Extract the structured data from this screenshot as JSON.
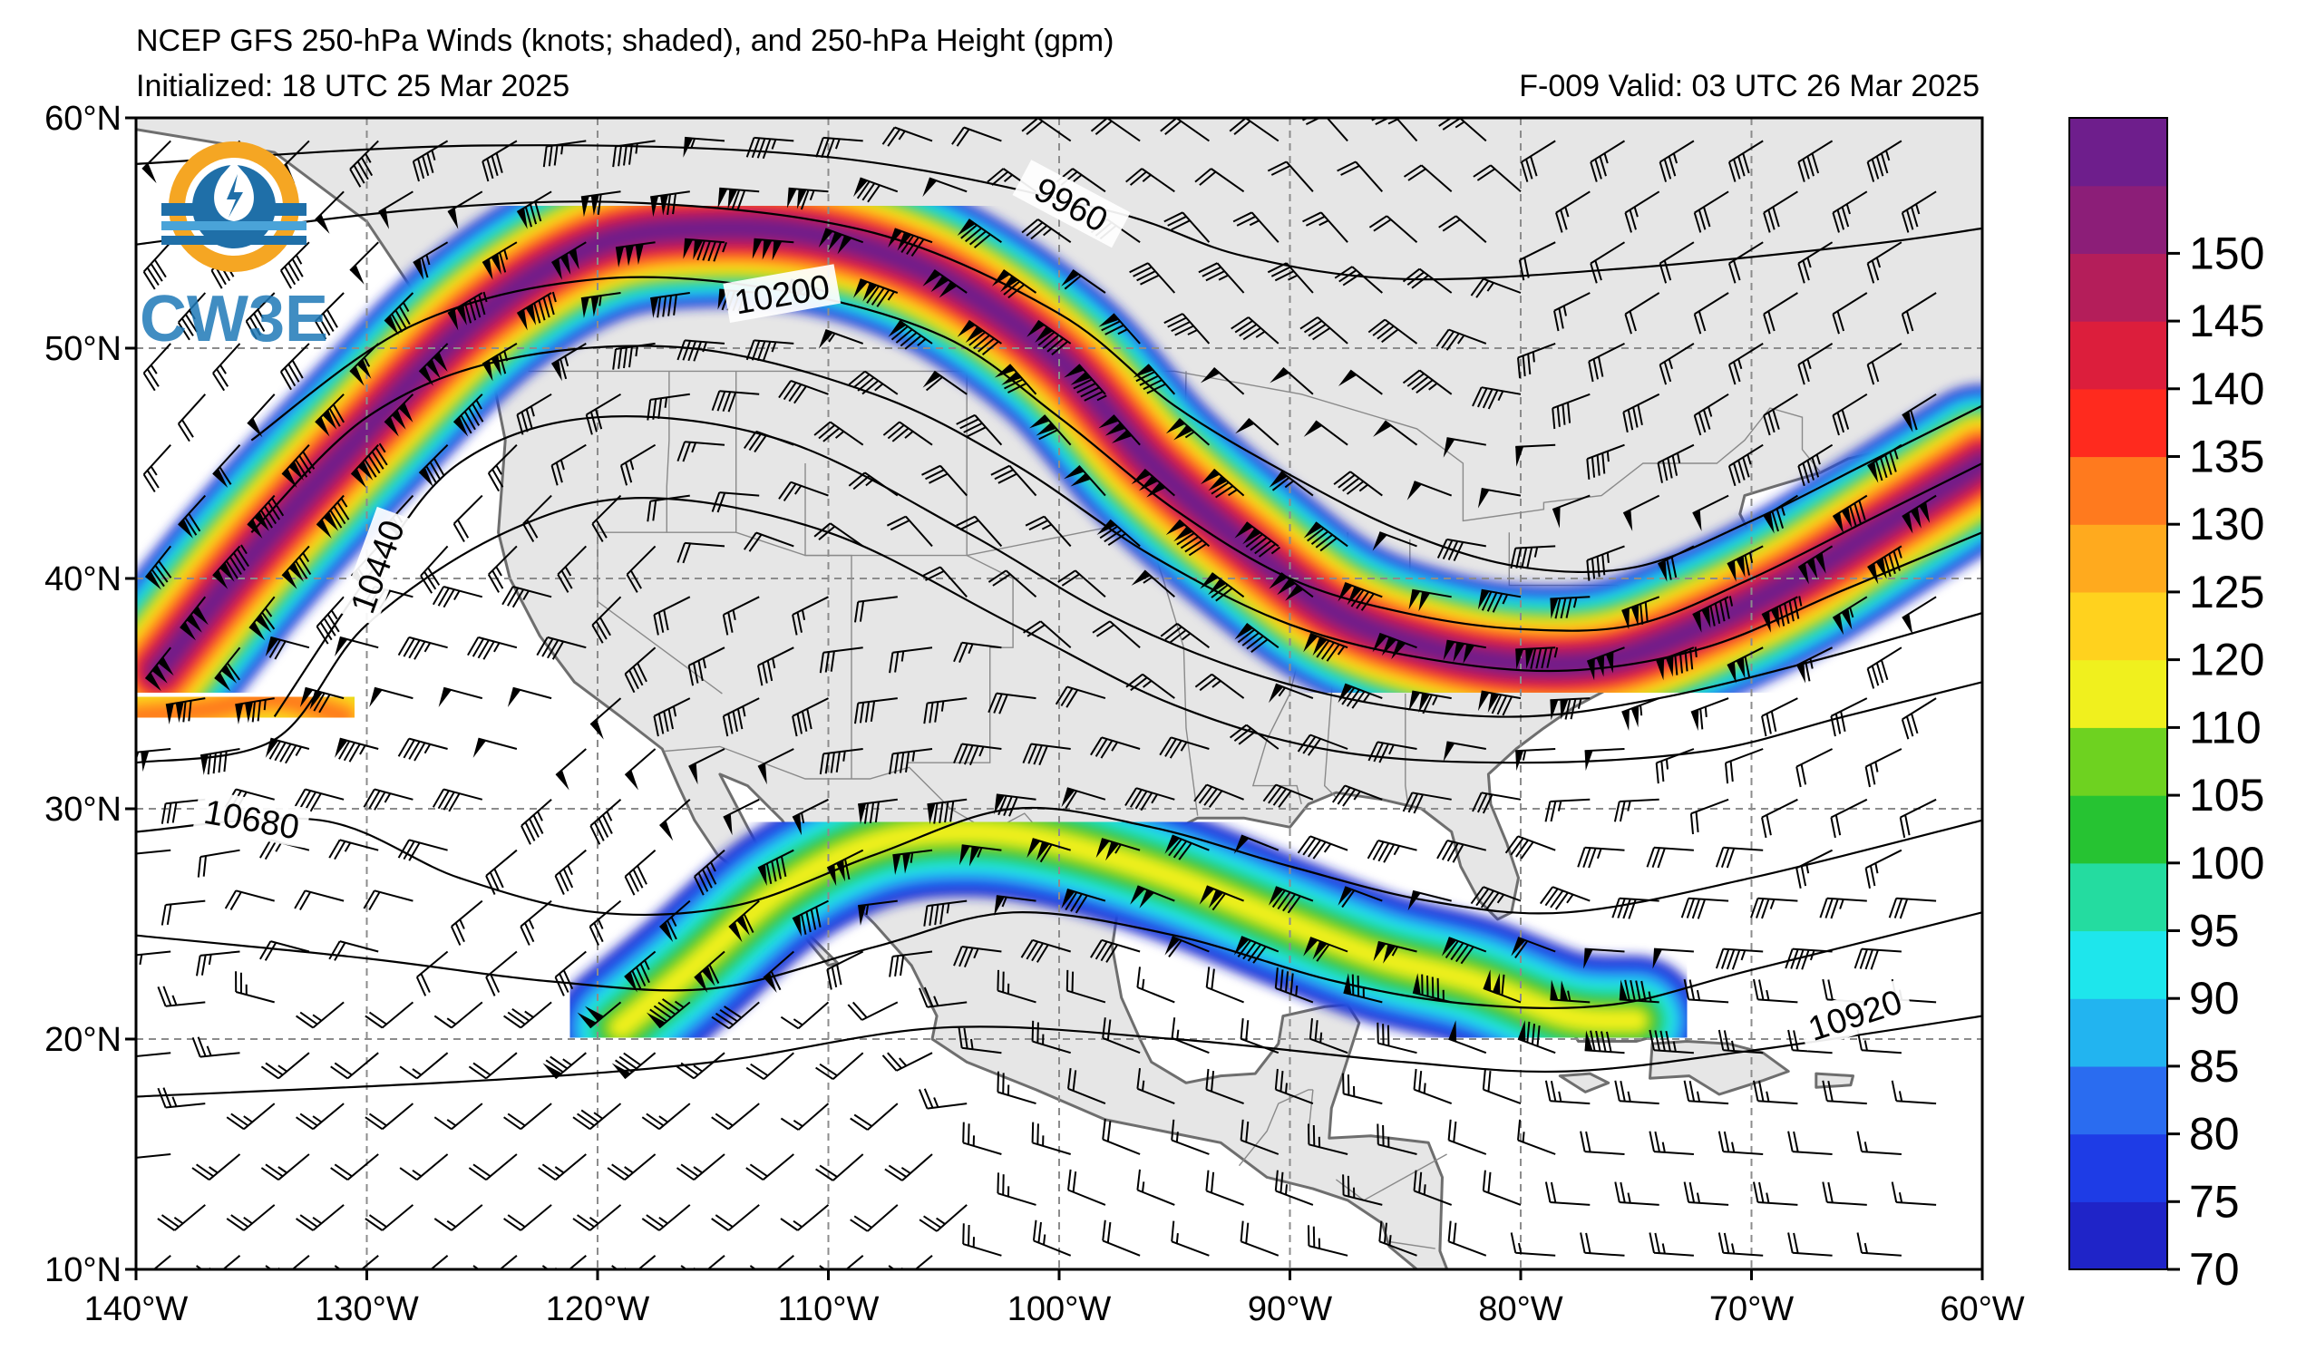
{
  "title": {
    "line1": "NCEP GFS 250-hPa Winds (knots; shaded), and 250-hPa Height (gpm)",
    "initialized": "Initialized: 18 UTC 25 Mar 2025",
    "valid": "F-009  Valid: 03 UTC 26 Mar 2025"
  },
  "logo": {
    "text": "CW3E",
    "icon": "cw3e-logo-icon"
  },
  "map": {
    "lon_range": [
      -140,
      -60
    ],
    "lat_range": [
      10,
      60
    ],
    "lon_ticks": [
      "140°W",
      "130°W",
      "120°W",
      "110°W",
      "100°W",
      "90°W",
      "80°W",
      "70°W",
      "60°W"
    ],
    "lat_ticks": [
      "60°N",
      "50°N",
      "40°N",
      "30°N",
      "20°N",
      "10°N"
    ],
    "grid": "dashed",
    "land_color": "#e6e6e6",
    "ocean_color": "#ffffff",
    "contour_labels": [
      "9960",
      "10200",
      "10440",
      "10680",
      "10920"
    ]
  },
  "colorbar": {
    "ticks": [
      "70",
      "75",
      "80",
      "85",
      "90",
      "95",
      "100",
      "105",
      "110",
      "120",
      "125",
      "130",
      "135",
      "140",
      "145",
      "150"
    ],
    "colors": [
      "#1f24c8",
      "#1e3ce6",
      "#2a6cf0",
      "#22b4f0",
      "#1ee6ec",
      "#24dca0",
      "#26c332",
      "#6ed220",
      "#f0f01e",
      "#ffd21e",
      "#ffaa1e",
      "#ff7a1e",
      "#ff2a1e",
      "#dc1e3c",
      "#b41e5a",
      "#8c1e78",
      "#6e1e8c"
    ]
  },
  "jets": [
    {
      "name": "northern-jet",
      "peak_knots": 150,
      "axis": [
        [
          -139,
          36
        ],
        [
          -135,
          41
        ],
        [
          -130,
          46.5
        ],
        [
          -125,
          51.5
        ],
        [
          -120,
          54.5
        ],
        [
          -115,
          55.2
        ],
        [
          -110,
          54.8
        ],
        [
          -105,
          53
        ],
        [
          -100,
          49.5
        ],
        [
          -96,
          45
        ],
        [
          -92,
          41.5
        ],
        [
          -88,
          38.5
        ],
        [
          -84,
          37
        ],
        [
          -80,
          36.3
        ],
        [
          -76,
          36.5
        ],
        [
          -72,
          38
        ],
        [
          -68,
          40
        ],
        [
          -64,
          42.5
        ],
        [
          -60,
          45
        ]
      ],
      "width_deg": 3.4
    },
    {
      "name": "southern-jet",
      "peak_knots": 110,
      "axis": [
        [
          -119,
          20.5
        ],
        [
          -116,
          23
        ],
        [
          -112,
          26.5
        ],
        [
          -108,
          28.5
        ],
        [
          -104,
          29
        ],
        [
          -100,
          28.5
        ],
        [
          -95,
          27
        ],
        [
          -90,
          25
        ],
        [
          -86,
          23.5
        ],
        [
          -82,
          22.5
        ],
        [
          -78,
          21
        ],
        [
          -75,
          20.8
        ]
      ],
      "width_deg": 2.8
    },
    {
      "name": "pacific-jet",
      "peak_knots": 125,
      "axis": [
        [
          -140,
          34
        ],
        [
          -137,
          34.3
        ],
        [
          -134,
          34.8
        ],
        [
          -131,
          34
        ]
      ],
      "width_deg": 3.0
    }
  ],
  "contours": [
    [
      [
        -140,
        58
      ],
      [
        -125,
        58.8
      ],
      [
        -110,
        58.3
      ],
      [
        -98,
        56
      ],
      [
        -92,
        54
      ],
      [
        -85,
        53
      ],
      [
        -75,
        53.5
      ],
      [
        -65,
        54.5
      ],
      [
        -60,
        55.2
      ]
    ],
    [
      [
        -140,
        54.5
      ],
      [
        -128,
        56
      ],
      [
        -118,
        56.3
      ],
      [
        -108,
        55
      ],
      [
        -100,
        51.5
      ],
      [
        -95,
        47.5
      ],
      [
        -90,
        44.5
      ],
      [
        -85,
        42
      ],
      [
        -80,
        40.5
      ],
      [
        -75,
        40.5
      ],
      [
        -70,
        42.5
      ],
      [
        -65,
        45
      ],
      [
        -60,
        47.5
      ]
    ],
    [
      [
        -135,
        46
      ],
      [
        -128,
        51
      ],
      [
        -120,
        53
      ],
      [
        -112,
        52.5
      ],
      [
        -105,
        50.5
      ],
      [
        -100,
        47
      ],
      [
        -95,
        43
      ],
      [
        -90,
        40
      ],
      [
        -85,
        38.5
      ],
      [
        -80,
        37.8
      ],
      [
        -75,
        38
      ],
      [
        -70,
        40
      ],
      [
        -65,
        42.5
      ],
      [
        -60,
        45
      ]
    ],
    [
      [
        -135,
        42
      ],
      [
        -130,
        47
      ],
      [
        -124,
        49.5
      ],
      [
        -116,
        50
      ],
      [
        -108,
        48
      ],
      [
        -102,
        45
      ],
      [
        -96,
        41
      ],
      [
        -90,
        38
      ],
      [
        -84,
        36.5
      ],
      [
        -78,
        36
      ],
      [
        -72,
        37
      ],
      [
        -66,
        39.5
      ],
      [
        -60,
        42
      ]
    ],
    [
      [
        -134,
        34
      ],
      [
        -130,
        40
      ],
      [
        -126,
        45
      ],
      [
        -120,
        47
      ],
      [
        -112,
        46
      ],
      [
        -104,
        42
      ],
      [
        -98,
        38.5
      ],
      [
        -92,
        36
      ],
      [
        -86,
        34.5
      ],
      [
        -80,
        34
      ],
      [
        -74,
        34.8
      ],
      [
        -67,
        36.5
      ],
      [
        -60,
        38.5
      ]
    ],
    [
      [
        -140,
        32
      ],
      [
        -134,
        33
      ],
      [
        -130,
        38
      ],
      [
        -124,
        42
      ],
      [
        -118,
        43.5
      ],
      [
        -110,
        42
      ],
      [
        -102,
        38
      ],
      [
        -95,
        34.5
      ],
      [
        -88,
        32.5
      ],
      [
        -80,
        32
      ],
      [
        -72,
        32.5
      ],
      [
        -66,
        34
      ],
      [
        -60,
        35.5
      ]
    ],
    [
      [
        -140,
        29
      ],
      [
        -132,
        29.5
      ],
      [
        -126,
        27
      ],
      [
        -120,
        25.5
      ],
      [
        -114,
        25.8
      ],
      [
        -108,
        28
      ],
      [
        -102,
        30
      ],
      [
        -96,
        29.2
      ],
      [
        -90,
        27.5
      ],
      [
        -84,
        26
      ],
      [
        -78,
        25.5
      ],
      [
        -70,
        27
      ],
      [
        -60,
        29.5
      ]
    ],
    [
      [
        -140,
        24.5
      ],
      [
        -130,
        23.5
      ],
      [
        -122,
        22.5
      ],
      [
        -115,
        22.2
      ],
      [
        -108,
        24
      ],
      [
        -102,
        25.5
      ],
      [
        -95,
        24.5
      ],
      [
        -88,
        22.5
      ],
      [
        -82,
        21.5
      ],
      [
        -76,
        21.5
      ],
      [
        -70,
        23
      ],
      [
        -60,
        25.5
      ]
    ],
    [
      [
        -140,
        17.5
      ],
      [
        -125,
        18.2
      ],
      [
        -115,
        19
      ],
      [
        -105,
        20.5
      ],
      [
        -95,
        20
      ],
      [
        -85,
        19
      ],
      [
        -78,
        18.6
      ],
      [
        -70,
        19.5
      ],
      [
        -60,
        21
      ]
    ]
  ],
  "contour_label_positions": [
    {
      "text": "9960",
      "lon": -99.5,
      "lat": 56.2,
      "angle": 28
    },
    {
      "text": "10200",
      "lon": -112,
      "lat": 52.3,
      "angle": -10
    },
    {
      "text": "10440",
      "lon": -129.5,
      "lat": 40.5,
      "angle": -70
    },
    {
      "text": "10680",
      "lon": -135,
      "lat": 29.5,
      "angle": 10
    },
    {
      "text": "10920",
      "lon": -65.5,
      "lat": 21,
      "angle": -18
    }
  ],
  "land_polygons": [
    [
      [
        -140,
        59.5
      ],
      [
        -134,
        58.5
      ],
      [
        -130,
        55.5
      ],
      [
        -127,
        51
      ],
      [
        -124.5,
        48.5
      ],
      [
        -124,
        46
      ],
      [
        -124.3,
        42
      ],
      [
        -123.8,
        40
      ],
      [
        -122.5,
        37.5
      ],
      [
        -121,
        35.5
      ],
      [
        -119,
        34
      ],
      [
        -117.2,
        32.6
      ],
      [
        -116.5,
        31
      ],
      [
        -115.8,
        29.5
      ],
      [
        -114.8,
        28
      ],
      [
        -113,
        26.5
      ],
      [
        -111.5,
        25
      ],
      [
        -110,
        23.2
      ],
      [
        -109.6,
        23.3
      ],
      [
        -110.8,
        24.5
      ],
      [
        -112.2,
        26.8
      ],
      [
        -113.5,
        29.2
      ],
      [
        -114.7,
        31.5
      ],
      [
        -113.5,
        31
      ],
      [
        -112,
        29.5
      ],
      [
        -111,
        28
      ],
      [
        -109.5,
        26.5
      ],
      [
        -108,
        25
      ],
      [
        -106.4,
        23.2
      ],
      [
        -105.3,
        21
      ],
      [
        -105.5,
        20
      ],
      [
        -104,
        19
      ],
      [
        -101,
        17.8
      ],
      [
        -98,
        16.5
      ],
      [
        -95,
        15.9
      ],
      [
        -93,
        15.5
      ],
      [
        -91,
        14
      ],
      [
        -89,
        13.5
      ],
      [
        -87.5,
        13
      ],
      [
        -86,
        12
      ],
      [
        -85.7,
        11
      ],
      [
        -84.5,
        10
      ],
      [
        -77,
        10
      ],
      [
        -77.5,
        10
      ],
      [
        -81,
        9.5
      ],
      [
        -83,
        9.5
      ],
      [
        -83.5,
        10.8
      ],
      [
        -83.4,
        14
      ],
      [
        -84,
        15.5
      ],
      [
        -86.5,
        15.8
      ],
      [
        -88.3,
        15.7
      ],
      [
        -88.2,
        17
      ],
      [
        -87.7,
        18.5
      ],
      [
        -87,
        20.7
      ],
      [
        -87.5,
        21.5
      ],
      [
        -88.5,
        21.4
      ],
      [
        -90.3,
        21
      ],
      [
        -90.5,
        19.8
      ],
      [
        -91.5,
        18.5
      ],
      [
        -93,
        18.4
      ],
      [
        -94.5,
        18.1
      ],
      [
        -96,
        19
      ],
      [
        -96.5,
        20
      ],
      [
        -97.3,
        21.8
      ],
      [
        -97.7,
        24
      ],
      [
        -97.4,
        26
      ],
      [
        -97.2,
        27.7
      ],
      [
        -96,
        28.6
      ],
      [
        -94,
        29.6
      ],
      [
        -92,
        29.6
      ],
      [
        -90,
        29.2
      ],
      [
        -89.2,
        30.2
      ],
      [
        -88,
        30.7
      ],
      [
        -86,
        30.4
      ],
      [
        -84.3,
        30
      ],
      [
        -83,
        29
      ],
      [
        -82.6,
        27.5
      ],
      [
        -81.8,
        26
      ],
      [
        -81,
        25.2
      ],
      [
        -80.4,
        25.5
      ],
      [
        -80.1,
        27
      ],
      [
        -80.6,
        28.5
      ],
      [
        -81.3,
        30.2
      ],
      [
        -81.4,
        31.5
      ],
      [
        -80.2,
        32.6
      ],
      [
        -79,
        33.5
      ],
      [
        -77.7,
        34.4
      ],
      [
        -76.2,
        35.2
      ],
      [
        -75.5,
        35.8
      ],
      [
        -75.9,
        37.2
      ],
      [
        -75.2,
        38.5
      ],
      [
        -74,
        39.8
      ],
      [
        -74,
        40.6
      ],
      [
        -72,
        40.9
      ],
      [
        -70.5,
        41.6
      ],
      [
        -70,
        41.8
      ],
      [
        -70.5,
        42.8
      ],
      [
        -70.3,
        43.6
      ],
      [
        -69,
        44
      ],
      [
        -67,
        44.6
      ],
      [
        -65.8,
        45.2
      ],
      [
        -64.5,
        45.5
      ],
      [
        -64.8,
        44.6
      ],
      [
        -63.5,
        44.6
      ],
      [
        -61.5,
        45.2
      ],
      [
        -60,
        45.8
      ],
      [
        -60,
        60
      ],
      [
        -140,
        60
      ]
    ],
    [
      [
        -85,
        22
      ],
      [
        -83.5,
        22.8
      ],
      [
        -82,
        23.1
      ],
      [
        -80.5,
        23
      ],
      [
        -79,
        22.5
      ],
      [
        -77.8,
        21.8
      ],
      [
        -76,
        21
      ],
      [
        -74.3,
        20.1
      ],
      [
        -75,
        19.9
      ],
      [
        -77.5,
        19.9
      ],
      [
        -78.5,
        21.4
      ],
      [
        -80,
        22
      ],
      [
        -82,
        22.5
      ],
      [
        -84.5,
        21.8
      ]
    ],
    [
      [
        -74.3,
        19.8
      ],
      [
        -72.8,
        19.9
      ],
      [
        -71,
        19.8
      ],
      [
        -69.5,
        19.4
      ],
      [
        -68.4,
        18.6
      ],
      [
        -69.5,
        18.2
      ],
      [
        -71.4,
        17.6
      ],
      [
        -72.7,
        18.4
      ],
      [
        -74.4,
        18.3
      ]
    ],
    [
      [
        -78.3,
        18.4
      ],
      [
        -77,
        18.5
      ],
      [
        -76.2,
        18.1
      ],
      [
        -77.2,
        17.7
      ]
    ],
    [
      [
        -67.2,
        18.5
      ],
      [
        -65.6,
        18.4
      ],
      [
        -65.7,
        18
      ],
      [
        -67.2,
        17.9
      ]
    ]
  ],
  "borders": [
    [
      [
        -123,
        49
      ],
      [
        -95,
        49
      ],
      [
        -89.5,
        48
      ],
      [
        -84.5,
        46.5
      ],
      [
        -82.5,
        45
      ],
      [
        -82.5,
        42.5
      ],
      [
        -79,
        43
      ],
      [
        -79,
        43.3
      ],
      [
        -76.5,
        43.6
      ],
      [
        -74.7,
        45
      ],
      [
        -71.5,
        45
      ],
      [
        -70.3,
        46
      ],
      [
        -69.2,
        47.4
      ],
      [
        -67.8,
        47
      ],
      [
        -67.8,
        45.6
      ],
      [
        -67,
        44.6
      ]
    ],
    [
      [
        -117.1,
        32.5
      ],
      [
        -114.7,
        32.7
      ],
      [
        -111,
        31.3
      ],
      [
        -108.2,
        31.3
      ],
      [
        -106.5,
        31.8
      ],
      [
        -104.7,
        30
      ],
      [
        -103,
        29
      ],
      [
        -101.5,
        29.8
      ],
      [
        -99.5,
        27.5
      ],
      [
        -97.2,
        25.9
      ]
    ],
    [
      [
        -94.5,
        49
      ],
      [
        -94.6,
        43
      ],
      [
        -96.5,
        42.5
      ],
      [
        -104,
        41
      ],
      [
        -111,
        41
      ],
      [
        -114,
        42
      ],
      [
        -120,
        42
      ]
    ],
    [
      [
        -104,
        49
      ],
      [
        -104,
        41
      ],
      [
        -102,
        40
      ],
      [
        -102,
        37
      ],
      [
        -103,
        37
      ],
      [
        -103,
        32
      ],
      [
        -106.6,
        32
      ]
    ],
    [
      [
        -111,
        45
      ],
      [
        -111,
        41
      ],
      [
        -109,
        41
      ],
      [
        -109,
        31.3
      ]
    ],
    [
      [
        -114,
        49
      ],
      [
        -114,
        42
      ]
    ],
    [
      [
        -116.9,
        49
      ],
      [
        -116.9,
        46
      ],
      [
        -117,
        44
      ],
      [
        -117,
        42
      ]
    ],
    [
      [
        -120,
        42
      ],
      [
        -120,
        39
      ],
      [
        -114.6,
        35
      ]
    ],
    [
      [
        -97,
        49
      ],
      [
        -96.5,
        46
      ],
      [
        -96.5,
        43
      ],
      [
        -95.5,
        40
      ],
      [
        -94.6,
        37
      ],
      [
        -94.5,
        33.5
      ],
      [
        -94,
        29.7
      ]
    ],
    [
      [
        -91,
        43.5
      ],
      [
        -91.3,
        40.5
      ],
      [
        -89.5,
        37
      ],
      [
        -90,
        35
      ],
      [
        -91,
        33
      ],
      [
        -91.6,
        31
      ],
      [
        -89.7,
        31
      ],
      [
        -89.5,
        30.2
      ]
    ],
    [
      [
        -87.5,
        42
      ],
      [
        -87.5,
        38
      ],
      [
        -88,
        37.5
      ],
      [
        -88.2,
        35
      ],
      [
        -88.5,
        31
      ],
      [
        -88,
        30.5
      ]
    ],
    [
      [
        -84.8,
        41.7
      ],
      [
        -84.8,
        39
      ],
      [
        -82.6,
        38.5
      ],
      [
        -82,
        37.5
      ],
      [
        -81.5,
        36.5
      ],
      [
        -75.8,
        36.5
      ]
    ],
    [
      [
        -85,
        35
      ],
      [
        -85,
        31
      ],
      [
        -84.9,
        30.3
      ]
    ],
    [
      [
        -80.5,
        42
      ],
      [
        -80.5,
        39.7
      ],
      [
        -75.8,
        39.7
      ],
      [
        -75.5,
        38.5
      ]
    ],
    [
      [
        -89,
        17.8
      ],
      [
        -89.2,
        15.9
      ]
    ],
    [
      [
        -92.2,
        14.5
      ],
      [
        -91,
        16
      ],
      [
        -90.5,
        17.2
      ],
      [
        -89.2,
        17.8
      ],
      [
        -89,
        17.8
      ]
    ],
    [
      [
        -88,
        13.9
      ],
      [
        -86.8,
        13
      ],
      [
        -85,
        14
      ],
      [
        -83.2,
        15
      ]
    ],
    [
      [
        -85.7,
        11.2
      ],
      [
        -83.7,
        10.9
      ]
    ]
  ],
  "barb_grid": {
    "lon_step": 3,
    "lat_step": 2.2
  }
}
